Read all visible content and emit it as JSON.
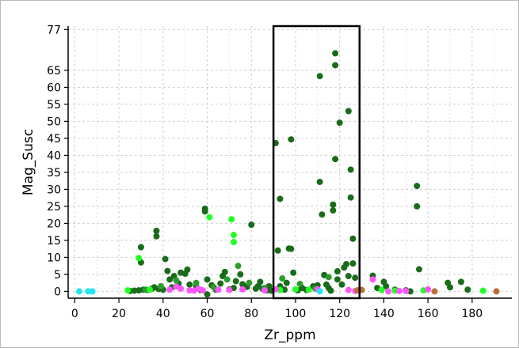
{
  "chart_data": {
    "type": "scatter",
    "title": "",
    "xlabel": "Zr_ppm",
    "ylabel": "Mag_Susc",
    "xlim": [
      -3,
      198
    ],
    "ylim": [
      -2,
      78
    ],
    "x_ticks": [
      0,
      20,
      40,
      60,
      80,
      100,
      120,
      140,
      160,
      180
    ],
    "y_ticks": [
      0,
      5,
      10,
      15,
      20,
      25,
      30,
      35,
      40,
      45,
      50,
      55,
      60,
      65,
      77
    ],
    "grid": true,
    "legend": "none",
    "selection_box": {
      "x_range": [
        90,
        129
      ],
      "y_range": [
        -2,
        78
      ]
    },
    "series": [
      {
        "color": "#1a6b1a",
        "points": [
          [
            25,
            0.1
          ],
          [
            27,
            0.2
          ],
          [
            29,
            0.3
          ],
          [
            30,
            8.5
          ],
          [
            30,
            13
          ],
          [
            31,
            0.5
          ],
          [
            33,
            0.4
          ],
          [
            35,
            0.8
          ],
          [
            36,
            1.2
          ],
          [
            37,
            16.2
          ],
          [
            37,
            17.8
          ],
          [
            38,
            0.7
          ],
          [
            40,
            0.5
          ],
          [
            41,
            9.5
          ],
          [
            42,
            6
          ],
          [
            43,
            3.5
          ],
          [
            44,
            1.2
          ],
          [
            45,
            4.5
          ],
          [
            47,
            2.3
          ],
          [
            48,
            5.5
          ],
          [
            50,
            5.2
          ],
          [
            51,
            6.4
          ],
          [
            52,
            2
          ],
          [
            55,
            1.5
          ],
          [
            57,
            0.4
          ],
          [
            59,
            24.3
          ],
          [
            59,
            23.5
          ],
          [
            60,
            3.5
          ],
          [
            60,
            -0.9
          ],
          [
            62,
            1.8
          ],
          [
            64,
            0.5
          ],
          [
            66,
            2.3
          ],
          [
            67,
            4.5
          ],
          [
            68,
            5.7
          ],
          [
            70,
            0.6
          ],
          [
            72,
            1
          ],
          [
            73,
            3
          ],
          [
            75,
            5
          ],
          [
            76,
            2.1
          ],
          [
            78,
            1.3
          ],
          [
            80,
            19.6
          ],
          [
            82,
            0.8
          ],
          [
            83,
            1.5
          ],
          [
            84,
            2.8
          ],
          [
            85,
            0.8
          ],
          [
            87,
            0.3
          ],
          [
            88,
            1.5
          ],
          [
            89,
            0.2
          ],
          [
            91,
            43.6
          ],
          [
            92,
            12
          ],
          [
            93,
            27.2
          ],
          [
            93,
            1.5
          ],
          [
            95,
            0.5
          ],
          [
            96,
            2.5
          ],
          [
            97,
            12.6
          ],
          [
            98,
            12.5
          ],
          [
            98,
            44.7
          ],
          [
            99,
            5.5
          ],
          [
            101,
            0.3
          ],
          [
            103,
            1
          ],
          [
            105,
            0.4
          ],
          [
            108,
            1.5
          ],
          [
            110,
            1.8
          ],
          [
            111,
            63.3
          ],
          [
            111,
            32.2
          ],
          [
            112,
            22.6
          ],
          [
            113,
            4.8
          ],
          [
            114,
            2
          ],
          [
            115,
            1
          ],
          [
            116,
            0.2
          ],
          [
            117,
            25.5
          ],
          [
            117,
            23.8
          ],
          [
            118,
            70
          ],
          [
            118,
            66.5
          ],
          [
            118,
            38.9
          ],
          [
            119,
            5.9
          ],
          [
            119,
            3.5
          ],
          [
            120,
            49.6
          ],
          [
            121,
            2
          ],
          [
            122,
            7
          ],
          [
            123,
            8
          ],
          [
            124,
            53
          ],
          [
            124,
            4.5
          ],
          [
            125,
            35.8
          ],
          [
            125,
            27.6
          ],
          [
            126,
            15.5
          ],
          [
            126,
            8.2
          ],
          [
            127,
            4
          ],
          [
            135,
            4.6
          ],
          [
            137,
            1
          ],
          [
            140,
            2.8
          ],
          [
            141,
            1.5
          ],
          [
            145,
            0.5
          ],
          [
            150,
            0.3
          ],
          [
            152,
            0
          ],
          [
            155,
            31
          ],
          [
            155,
            25
          ],
          [
            156,
            6.5
          ],
          [
            169,
            2.5
          ],
          [
            170,
            1.2
          ],
          [
            175,
            2.8
          ],
          [
            178,
            0.5
          ]
        ]
      },
      {
        "color": "#2e9b2e",
        "points": [
          [
            32,
            0.5
          ],
          [
            39,
            1.5
          ],
          [
            46,
            3.2
          ],
          [
            55,
            2.5
          ],
          [
            63,
            1.2
          ],
          [
            69,
            3.5
          ],
          [
            74,
            7.5
          ],
          [
            79,
            2.5
          ],
          [
            86,
            1
          ],
          [
            94,
            3.8
          ],
          [
            102,
            2.2
          ],
          [
            109,
            0.8
          ],
          [
            115,
            4.2
          ]
        ]
      },
      {
        "color": "#22ff22",
        "points": [
          [
            24,
            0.3
          ],
          [
            29,
            9.8
          ],
          [
            34,
            0.5
          ],
          [
            61,
            21.8
          ],
          [
            71,
            21.2
          ],
          [
            72,
            16.6
          ],
          [
            72,
            14.5
          ],
          [
            93,
            0.4
          ],
          [
            100,
            0.6
          ],
          [
            106,
            0.5
          ],
          [
            139,
            0.4
          ],
          [
            145,
            0.2
          ],
          [
            158,
            0.3
          ],
          [
            185,
            0.2
          ]
        ]
      },
      {
        "color": "#ff55ff",
        "points": [
          [
            43,
            0.5
          ],
          [
            46,
            1.4
          ],
          [
            48,
            0.8
          ],
          [
            52,
            0.3
          ],
          [
            54,
            0.2
          ],
          [
            56,
            0.8
          ],
          [
            58,
            0.3
          ],
          [
            65,
            0.5
          ],
          [
            70,
            0.4
          ],
          [
            76,
            0.6
          ],
          [
            86,
            0.3
          ],
          [
            91,
            0.6
          ],
          [
            110,
            0.6
          ],
          [
            124,
            0.4
          ],
          [
            127,
            0.1
          ],
          [
            135,
            3.5
          ],
          [
            142,
            0
          ],
          [
            147,
            0.1
          ],
          [
            150,
            0.1
          ],
          [
            160,
            0.6
          ]
        ]
      },
      {
        "color": "#22e5f2",
        "points": [
          [
            2,
            0
          ],
          [
            6,
            0
          ],
          [
            8,
            0
          ],
          [
            111,
            0
          ]
        ]
      },
      {
        "color": "#b8703a",
        "points": [
          [
            128,
            0.3
          ],
          [
            130,
            0.4
          ],
          [
            163,
            0
          ],
          [
            191,
            0
          ]
        ]
      }
    ]
  }
}
